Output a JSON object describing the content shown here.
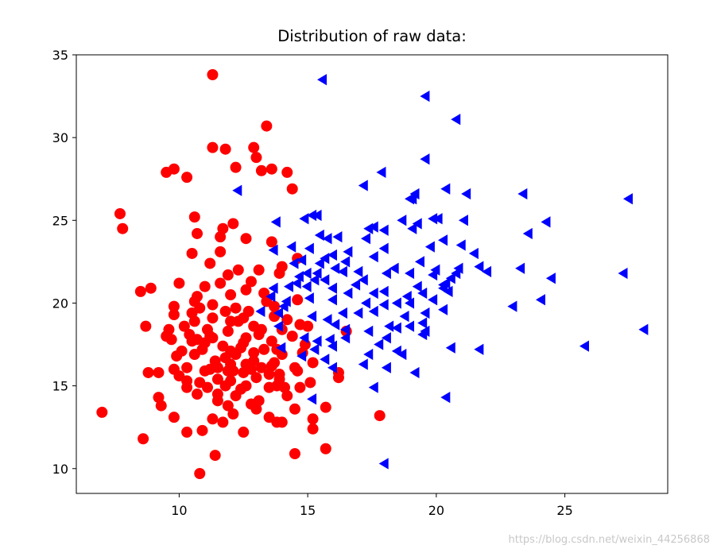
{
  "chart_data": {
    "type": "scatter",
    "title": "Distribution of raw data:",
    "xlabel": "",
    "ylabel": "",
    "xlim": [
      6.0,
      29.0
    ],
    "ylim": [
      8.5,
      35.0
    ],
    "xticks": [
      10,
      15,
      20,
      25
    ],
    "yticks": [
      10,
      15,
      20,
      25,
      30,
      35
    ],
    "grid": false,
    "series": [
      {
        "marker": "circle",
        "color": "#ff0000",
        "points": [
          [
            11.3,
            33.8
          ],
          [
            13.4,
            30.7
          ],
          [
            11.3,
            29.4
          ],
          [
            11.8,
            29.3
          ],
          [
            12.9,
            29.4
          ],
          [
            13.0,
            28.8
          ],
          [
            9.5,
            27.9
          ],
          [
            9.8,
            28.1
          ],
          [
            10.3,
            27.6
          ],
          [
            12.2,
            28.2
          ],
          [
            13.2,
            28.0
          ],
          [
            13.6,
            28.1
          ],
          [
            14.2,
            27.9
          ],
          [
            14.4,
            26.9
          ],
          [
            7.7,
            25.4
          ],
          [
            7.8,
            24.5
          ],
          [
            10.6,
            25.2
          ],
          [
            12.1,
            24.8
          ],
          [
            11.7,
            24.5
          ],
          [
            10.7,
            24.2
          ],
          [
            11.6,
            24.0
          ],
          [
            12.6,
            23.9
          ],
          [
            13.6,
            23.7
          ],
          [
            10.5,
            23.0
          ],
          [
            11.2,
            22.4
          ],
          [
            14.6,
            22.7
          ],
          [
            16.5,
            18.3
          ],
          [
            12.3,
            22.0
          ],
          [
            13.1,
            22.0
          ],
          [
            13.9,
            21.8
          ],
          [
            8.5,
            20.7
          ],
          [
            8.9,
            20.9
          ],
          [
            10.0,
            21.2
          ],
          [
            11.0,
            21.0
          ],
          [
            11.6,
            21.2
          ],
          [
            12.8,
            21.3
          ],
          [
            10.7,
            20.4
          ],
          [
            12.0,
            20.5
          ],
          [
            12.6,
            20.8
          ],
          [
            13.3,
            20.6
          ],
          [
            9.8,
            19.8
          ],
          [
            10.6,
            20.1
          ],
          [
            11.3,
            19.9
          ],
          [
            12.2,
            19.7
          ],
          [
            9.8,
            19.3
          ],
          [
            10.5,
            19.4
          ],
          [
            11.8,
            19.5
          ],
          [
            12.5,
            19.1
          ],
          [
            13.7,
            19.2
          ],
          [
            8.7,
            18.6
          ],
          [
            9.6,
            18.4
          ],
          [
            10.2,
            18.6
          ],
          [
            11.1,
            18.4
          ],
          [
            11.9,
            18.3
          ],
          [
            12.9,
            18.6
          ],
          [
            14.0,
            18.4
          ],
          [
            15.0,
            18.6
          ],
          [
            9.5,
            18.0
          ],
          [
            10.5,
            17.7
          ],
          [
            11.3,
            17.9
          ],
          [
            12.6,
            17.9
          ],
          [
            13.6,
            17.7
          ],
          [
            10.1,
            17.1
          ],
          [
            10.9,
            17.2
          ],
          [
            11.7,
            17.4
          ],
          [
            12.4,
            17.3
          ],
          [
            13.3,
            17.2
          ],
          [
            14.8,
            17.0
          ],
          [
            9.9,
            16.8
          ],
          [
            11.4,
            16.5
          ],
          [
            12.2,
            16.9
          ],
          [
            12.9,
            16.5
          ],
          [
            13.7,
            16.4
          ],
          [
            15.2,
            16.4
          ],
          [
            9.8,
            16.0
          ],
          [
            10.3,
            16.1
          ],
          [
            11.0,
            15.9
          ],
          [
            12.5,
            15.8
          ],
          [
            13.5,
            15.7
          ],
          [
            14.6,
            15.9
          ],
          [
            8.8,
            15.8
          ],
          [
            9.2,
            15.8
          ],
          [
            10.0,
            15.6
          ],
          [
            11.5,
            15.4
          ],
          [
            12.0,
            15.3
          ],
          [
            13.0,
            15.5
          ],
          [
            13.9,
            15.4
          ],
          [
            15.1,
            15.2
          ],
          [
            16.2,
            15.8
          ],
          [
            10.3,
            14.9
          ],
          [
            11.1,
            14.9
          ],
          [
            11.8,
            15.0
          ],
          [
            12.4,
            14.8
          ],
          [
            13.5,
            14.9
          ],
          [
            14.7,
            14.9
          ],
          [
            9.2,
            14.3
          ],
          [
            10.7,
            14.5
          ],
          [
            11.5,
            14.5
          ],
          [
            12.2,
            14.4
          ],
          [
            14.2,
            14.4
          ],
          [
            9.3,
            13.8
          ],
          [
            11.9,
            13.8
          ],
          [
            13.0,
            13.6
          ],
          [
            14.5,
            13.6
          ],
          [
            15.7,
            13.7
          ],
          [
            7.0,
            13.4
          ],
          [
            9.8,
            13.1
          ],
          [
            11.3,
            13.0
          ],
          [
            12.1,
            13.3
          ],
          [
            13.5,
            13.1
          ],
          [
            15.2,
            13.0
          ],
          [
            17.8,
            13.2
          ],
          [
            10.3,
            12.2
          ],
          [
            10.9,
            12.3
          ],
          [
            11.7,
            12.8
          ],
          [
            12.5,
            12.2
          ],
          [
            13.8,
            12.8
          ],
          [
            8.6,
            11.8
          ],
          [
            14.5,
            10.9
          ],
          [
            15.7,
            11.2
          ],
          [
            11.4,
            10.8
          ],
          [
            10.8,
            9.7
          ],
          [
            10.6,
            18.9
          ],
          [
            12.0,
            18.9
          ],
          [
            13.1,
            18.1
          ],
          [
            14.2,
            19.0
          ],
          [
            11.5,
            16.1
          ],
          [
            12.8,
            16.0
          ],
          [
            13.8,
            15.0
          ],
          [
            10.6,
            16.9
          ],
          [
            14.4,
            18.0
          ],
          [
            12.0,
            17.1
          ],
          [
            14.0,
            22.2
          ],
          [
            11.6,
            23.1
          ],
          [
            13.4,
            20.1
          ],
          [
            12.0,
            16.3
          ],
          [
            12.6,
            15.0
          ],
          [
            13.8,
            17.2
          ],
          [
            11.2,
            18.0
          ],
          [
            14.5,
            16.1
          ],
          [
            11.2,
            16.0
          ],
          [
            12.8,
            13.9
          ],
          [
            10.7,
            17.8
          ],
          [
            13.9,
            15.7
          ],
          [
            11.8,
            16.7
          ],
          [
            12.6,
            16.3
          ],
          [
            9.7,
            17.8
          ],
          [
            13.2,
            18.4
          ],
          [
            10.8,
            19.7
          ],
          [
            14.9,
            17.5
          ],
          [
            11.5,
            14.1
          ],
          [
            13.2,
            16.1
          ],
          [
            14.0,
            16.9
          ],
          [
            12.3,
            18.9
          ],
          [
            10.4,
            18.1
          ],
          [
            11.9,
            15.9
          ],
          [
            13.7,
            19.8
          ],
          [
            12.5,
            17.6
          ],
          [
            11.0,
            17.6
          ],
          [
            14.1,
            14.9
          ],
          [
            10.3,
            15.3
          ],
          [
            12.9,
            17.0
          ],
          [
            15.2,
            12.4
          ],
          [
            16.2,
            15.5
          ],
          [
            14.0,
            12.8
          ],
          [
            13.1,
            14.1
          ],
          [
            14.7,
            18.7
          ],
          [
            10.8,
            15.2
          ],
          [
            12.1,
            15.9
          ],
          [
            13.6,
            16.2
          ],
          [
            11.3,
            19.1
          ],
          [
            12.7,
            19.5
          ],
          [
            14.6,
            20.2
          ],
          [
            11.9,
            21.7
          ]
        ]
      },
      {
        "marker": "triangle-left",
        "color": "#0000ff",
        "points": [
          [
            15.6,
            33.5
          ],
          [
            19.6,
            32.5
          ],
          [
            20.8,
            31.1
          ],
          [
            19.6,
            28.7
          ],
          [
            17.9,
            27.9
          ],
          [
            17.2,
            27.1
          ],
          [
            12.3,
            26.8
          ],
          [
            19.2,
            26.6
          ],
          [
            19.1,
            26.3
          ],
          [
            20.4,
            26.9
          ],
          [
            21.2,
            26.6
          ],
          [
            23.4,
            26.6
          ],
          [
            27.5,
            26.3
          ],
          [
            19.0,
            26.3
          ],
          [
            13.8,
            24.9
          ],
          [
            14.9,
            25.1
          ],
          [
            15.2,
            25.3
          ],
          [
            15.4,
            25.3
          ],
          [
            17.4,
            24.5
          ],
          [
            17.6,
            24.6
          ],
          [
            18.0,
            24.4
          ],
          [
            18.7,
            25.0
          ],
          [
            19.1,
            24.5
          ],
          [
            19.3,
            24.8
          ],
          [
            19.9,
            25.1
          ],
          [
            20.1,
            25.1
          ],
          [
            21.1,
            25.0
          ],
          [
            24.3,
            24.9
          ],
          [
            23.6,
            24.2
          ],
          [
            15.8,
            23.9
          ],
          [
            16.2,
            24.0
          ],
          [
            17.3,
            23.9
          ],
          [
            20.3,
            23.8
          ],
          [
            21.5,
            23.0
          ],
          [
            21.0,
            23.5
          ],
          [
            14.4,
            23.4
          ],
          [
            13.7,
            23.2
          ],
          [
            15.1,
            23.3
          ],
          [
            15.7,
            22.7
          ],
          [
            16.0,
            22.9
          ],
          [
            15.5,
            22.4
          ],
          [
            16.6,
            23.1
          ],
          [
            17.6,
            22.8
          ],
          [
            19.8,
            23.4
          ],
          [
            18.0,
            23.3
          ],
          [
            19.4,
            22.5
          ],
          [
            14.5,
            22.4
          ],
          [
            16.1,
            22.1
          ],
          [
            15.0,
            21.8
          ],
          [
            15.4,
            21.8
          ],
          [
            14.7,
            21.6
          ],
          [
            14.6,
            21.2
          ],
          [
            15.3,
            21.4
          ],
          [
            16.4,
            21.9
          ],
          [
            17.0,
            21.9
          ],
          [
            18.1,
            21.8
          ],
          [
            19.0,
            21.8
          ],
          [
            19.9,
            21.7
          ],
          [
            20.0,
            22.0
          ],
          [
            20.8,
            21.8
          ],
          [
            21.7,
            22.2
          ],
          [
            22.0,
            21.9
          ],
          [
            23.3,
            22.1
          ],
          [
            24.5,
            21.5
          ],
          [
            27.3,
            21.8
          ],
          [
            13.7,
            20.9
          ],
          [
            14.3,
            21.0
          ],
          [
            15.0,
            21.0
          ],
          [
            16.0,
            20.9
          ],
          [
            16.9,
            21.1
          ],
          [
            17.2,
            21.4
          ],
          [
            18.0,
            20.7
          ],
          [
            19.5,
            20.6
          ],
          [
            20.3,
            21.1
          ],
          [
            20.6,
            21.5
          ],
          [
            20.5,
            20.7
          ],
          [
            20.4,
            21.2
          ],
          [
            13.6,
            20.4
          ],
          [
            15.1,
            20.3
          ],
          [
            16.0,
            20.2
          ],
          [
            16.6,
            20.6
          ],
          [
            17.3,
            20.0
          ],
          [
            18.0,
            19.9
          ],
          [
            18.5,
            20.0
          ],
          [
            19.0,
            20.0
          ],
          [
            19.9,
            20.2
          ],
          [
            20.3,
            20.9
          ],
          [
            23.0,
            19.8
          ],
          [
            24.1,
            20.2
          ],
          [
            13.2,
            19.5
          ],
          [
            13.9,
            19.4
          ],
          [
            14.1,
            19.8
          ],
          [
            15.2,
            19.2
          ],
          [
            16.4,
            19.4
          ],
          [
            17.6,
            19.5
          ],
          [
            18.8,
            19.2
          ],
          [
            19.6,
            19.4
          ],
          [
            20.3,
            19.6
          ],
          [
            13.9,
            18.6
          ],
          [
            16.1,
            18.7
          ],
          [
            16.5,
            18.4
          ],
          [
            17.4,
            18.3
          ],
          [
            18.2,
            18.6
          ],
          [
            19.0,
            18.6
          ],
          [
            19.5,
            18.8
          ],
          [
            19.6,
            18.3
          ],
          [
            28.1,
            18.4
          ],
          [
            14.9,
            17.9
          ],
          [
            15.4,
            17.7
          ],
          [
            15.9,
            17.8
          ],
          [
            16.5,
            17.9
          ],
          [
            18.1,
            17.9
          ],
          [
            18.5,
            18.5
          ],
          [
            19.5,
            18.1
          ],
          [
            14.0,
            17.3
          ],
          [
            15.3,
            17.2
          ],
          [
            16.0,
            17.4
          ],
          [
            17.8,
            17.5
          ],
          [
            18.5,
            17.1
          ],
          [
            20.6,
            17.3
          ],
          [
            21.7,
            17.2
          ],
          [
            25.8,
            17.4
          ],
          [
            14.8,
            16.8
          ],
          [
            15.7,
            16.6
          ],
          [
            17.4,
            16.9
          ],
          [
            18.7,
            16.9
          ],
          [
            17.2,
            16.3
          ],
          [
            18.1,
            16.1
          ],
          [
            19.2,
            15.8
          ],
          [
            17.6,
            14.9
          ],
          [
            20.4,
            14.3
          ],
          [
            15.2,
            14.2
          ],
          [
            18.0,
            10.3
          ],
          [
            15.7,
            21.4
          ],
          [
            16.5,
            22.5
          ],
          [
            14.2,
            20.1
          ],
          [
            15.8,
            19.0
          ],
          [
            17.6,
            20.6
          ],
          [
            18.9,
            20.4
          ],
          [
            18.4,
            22.1
          ],
          [
            16.0,
            16.1
          ],
          [
            20.9,
            22.1
          ],
          [
            15.5,
            24.1
          ],
          [
            19.3,
            21.0
          ],
          [
            17.0,
            19.4
          ],
          [
            14.8,
            22.6
          ]
        ]
      }
    ]
  },
  "watermark": "https://blog.csdn.net/weixin_44256868"
}
